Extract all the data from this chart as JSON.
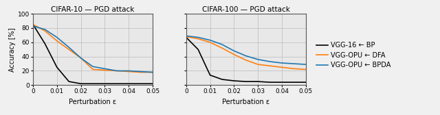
{
  "cifar10": {
    "title": "CIFAR-10 — PGD attack",
    "x": [
      0,
      0.005,
      0.01,
      0.015,
      0.02,
      0.025,
      0.03,
      0.035,
      0.04,
      0.045,
      0.05
    ],
    "bp": [
      85,
      58,
      25,
      5,
      2,
      2,
      2,
      2,
      2,
      2,
      2
    ],
    "dfa": [
      85,
      76,
      62,
      50,
      38,
      22,
      21,
      20,
      19,
      18,
      18
    ],
    "bpda": [
      83,
      78,
      67,
      53,
      38,
      26,
      23,
      20,
      20,
      19,
      18
    ]
  },
  "cifar100": {
    "title": "CIFAR-100 — PGD attack",
    "x": [
      0,
      0.005,
      0.01,
      0.015,
      0.02,
      0.025,
      0.03,
      0.035,
      0.04,
      0.045,
      0.05
    ],
    "bp": [
      67,
      50,
      14,
      8,
      6,
      5,
      5,
      4,
      4,
      4,
      4
    ],
    "dfa": [
      68,
      65,
      60,
      52,
      43,
      35,
      29,
      27,
      25,
      23,
      22
    ],
    "bpda": [
      69,
      67,
      63,
      57,
      48,
      41,
      36,
      33,
      31,
      30,
      29
    ]
  },
  "legend": {
    "bp_label": "VGG-16 ← BP",
    "dfa_label": "VGG-OPU ← DFA",
    "bpda_label": "VGG-OPU ← BPDA"
  },
  "colors": {
    "bp": "#000000",
    "dfa": "#ff7f0e",
    "bpda": "#1f77b4"
  },
  "xlabel": "Perturbation ε",
  "ylabel": "Accuracy [%]",
  "xlim": [
    0,
    0.05
  ],
  "ylim": [
    0,
    100
  ],
  "xticks": [
    0,
    0.01,
    0.02,
    0.03,
    0.04,
    0.05
  ],
  "yticks": [
    0,
    20,
    40,
    60,
    80,
    100
  ],
  "linewidth": 1.2,
  "bg_color": "#e8e8e8"
}
